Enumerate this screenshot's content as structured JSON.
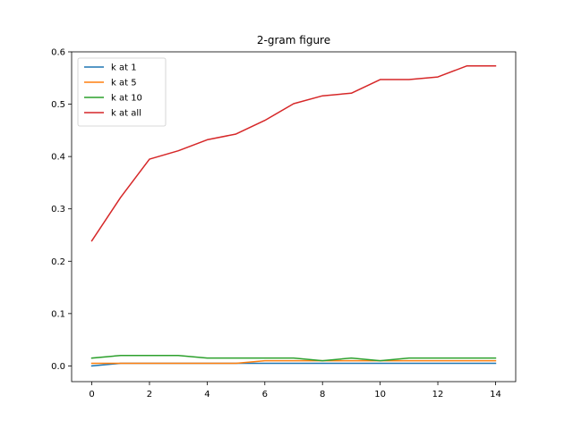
{
  "chart_data": {
    "type": "line",
    "title": "2-gram figure",
    "xlabel": "",
    "ylabel": "",
    "xlim": [
      -0.7,
      14.7
    ],
    "ylim": [
      -0.03,
      0.6
    ],
    "x_ticks": [
      0,
      2,
      4,
      6,
      8,
      10,
      12,
      14
    ],
    "y_ticks": [
      0.0,
      0.1,
      0.2,
      0.3,
      0.4,
      0.5,
      0.6
    ],
    "y_tick_labels": [
      "0.0",
      "0.1",
      "0.2",
      "0.3",
      "0.4",
      "0.5",
      "0.6"
    ],
    "grid": false,
    "legend_position": "upper-left",
    "x": [
      0,
      1,
      2,
      3,
      4,
      5,
      6,
      7,
      8,
      9,
      10,
      11,
      12,
      13,
      14
    ],
    "series": [
      {
        "name": "k at 1",
        "color": "#1f77b4",
        "values": [
          0.0,
          0.005,
          0.005,
          0.005,
          0.005,
          0.005,
          0.005,
          0.005,
          0.005,
          0.005,
          0.005,
          0.005,
          0.005,
          0.005,
          0.005
        ]
      },
      {
        "name": "k at 5",
        "color": "#ff7f0e",
        "values": [
          0.005,
          0.005,
          0.005,
          0.005,
          0.005,
          0.005,
          0.01,
          0.01,
          0.01,
          0.01,
          0.01,
          0.01,
          0.01,
          0.01,
          0.01
        ]
      },
      {
        "name": "k at 10",
        "color": "#2ca02c",
        "values": [
          0.015,
          0.02,
          0.02,
          0.02,
          0.015,
          0.015,
          0.015,
          0.015,
          0.01,
          0.015,
          0.01,
          0.015,
          0.015,
          0.015,
          0.015
        ]
      },
      {
        "name": "k at all",
        "color": "#d62728",
        "values": [
          0.239,
          0.322,
          0.395,
          0.411,
          0.432,
          0.443,
          0.469,
          0.501,
          0.516,
          0.521,
          0.547,
          0.547,
          0.552,
          0.573,
          0.573
        ]
      }
    ]
  }
}
